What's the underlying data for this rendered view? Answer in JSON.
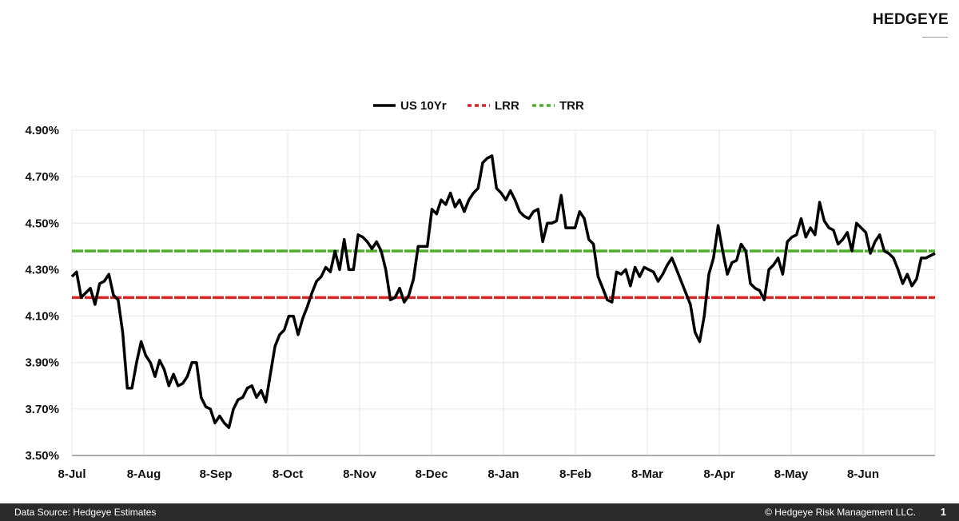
{
  "brand": {
    "name": "HEDGEYE"
  },
  "footer": {
    "source": "Data Source: Hedgeye Estimates",
    "copyright": "© Hedgeye Risk Management LLC.",
    "page_number": "1"
  },
  "colors": {
    "us10yr": "#000000",
    "lrr": "#d62728",
    "trr": "#4caf2a",
    "grid": "#e6e6e6"
  },
  "chart_data": {
    "type": "line",
    "title": "",
    "xlabel": "",
    "ylabel": "",
    "legend_position": "top-center",
    "grid": true,
    "ylim": [
      3.5,
      4.9
    ],
    "y_ticks": [
      "3.50%",
      "3.70%",
      "3.90%",
      "4.10%",
      "4.30%",
      "4.50%",
      "4.70%",
      "4.90%"
    ],
    "x_ticks": [
      "8-Jul",
      "8-Aug",
      "8-Sep",
      "8-Oct",
      "8-Nov",
      "8-Dec",
      "8-Jan",
      "8-Feb",
      "8-Mar",
      "8-Apr",
      "8-May",
      "8-Jun"
    ],
    "series": [
      {
        "name": "US 10Yr",
        "values": [
          4.27,
          4.29,
          4.18,
          4.2,
          4.22,
          4.15,
          4.24,
          4.25,
          4.28,
          4.19,
          4.17,
          4.03,
          3.79,
          3.79,
          3.9,
          3.99,
          3.93,
          3.9,
          3.84,
          3.91,
          3.87,
          3.8,
          3.85,
          3.8,
          3.81,
          3.84,
          3.9,
          3.9,
          3.75,
          3.71,
          3.7,
          3.64,
          3.67,
          3.64,
          3.62,
          3.7,
          3.74,
          3.75,
          3.79,
          3.8,
          3.75,
          3.78,
          3.73,
          3.85,
          3.97,
          4.02,
          4.04,
          4.1,
          4.1,
          4.02,
          4.09,
          4.14,
          4.2,
          4.25,
          4.27,
          4.31,
          4.29,
          4.38,
          4.3,
          4.43,
          4.3,
          4.3,
          4.45,
          4.44,
          4.42,
          4.39,
          4.42,
          4.38,
          4.3,
          4.17,
          4.18,
          4.22,
          4.16,
          4.19,
          4.26,
          4.4,
          4.4,
          4.4,
          4.56,
          4.54,
          4.6,
          4.58,
          4.63,
          4.57,
          4.6,
          4.55,
          4.6,
          4.63,
          4.65,
          4.76,
          4.78,
          4.79,
          4.65,
          4.63,
          4.6,
          4.64,
          4.6,
          4.55,
          4.53,
          4.52,
          4.55,
          4.56,
          4.42,
          4.5,
          4.5,
          4.51,
          4.62,
          4.48,
          4.48,
          4.48,
          4.55,
          4.52,
          4.43,
          4.41,
          4.27,
          4.22,
          4.17,
          4.16,
          4.29,
          4.28,
          4.3,
          4.23,
          4.31,
          4.27,
          4.31,
          4.3,
          4.29,
          4.25,
          4.28,
          4.32,
          4.35,
          4.3,
          4.25,
          4.2,
          4.15,
          4.03,
          3.99,
          4.1,
          4.28,
          4.35,
          4.49,
          4.38,
          4.28,
          4.33,
          4.34,
          4.41,
          4.38,
          4.24,
          4.22,
          4.21,
          4.17,
          4.3,
          4.32,
          4.35,
          4.28,
          4.42,
          4.44,
          4.45,
          4.52,
          4.44,
          4.48,
          4.45,
          4.59,
          4.51,
          4.48,
          4.47,
          4.41,
          4.43,
          4.46,
          4.38,
          4.5,
          4.48,
          4.46,
          4.37,
          4.42,
          4.45,
          4.38,
          4.37,
          4.35,
          4.3,
          4.24,
          4.28,
          4.23,
          4.26,
          4.35,
          4.35,
          4.36,
          4.37
        ]
      },
      {
        "name": "LRR",
        "values": [
          4.18,
          4.18
        ]
      },
      {
        "name": "TRR",
        "values": [
          4.38,
          4.38
        ]
      }
    ]
  }
}
